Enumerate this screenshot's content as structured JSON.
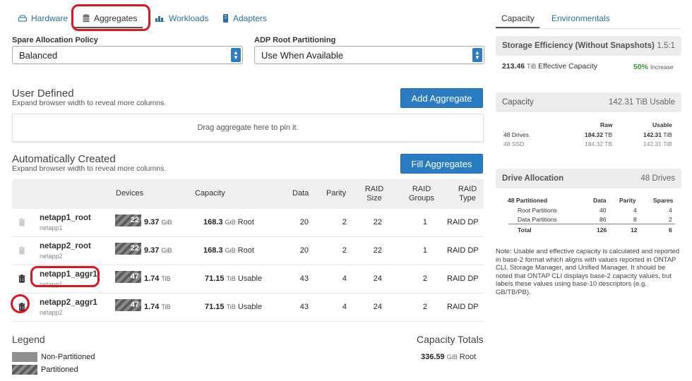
{
  "tabs": [
    {
      "label": "Hardware",
      "icon": "hard-drive-icon"
    },
    {
      "label": "Aggregates",
      "icon": "database-icon"
    },
    {
      "label": "Workloads",
      "icon": "bar-chart-icon"
    },
    {
      "label": "Adapters",
      "icon": "adapter-icon"
    }
  ],
  "spare_policy": {
    "label": "Spare Allocation Policy",
    "value": "Balanced"
  },
  "adp_root": {
    "label": "ADP Root Partitioning",
    "value": "Use When Available"
  },
  "user_defined": {
    "title": "User Defined",
    "note": "Expand browser width to reveal more columns.",
    "button": "Add Aggregate",
    "dropzone": "Drag aggregate here to pin it."
  },
  "auto_created": {
    "title": "Automatically Created",
    "note": "Expand browser width to reveal more columns.",
    "button": "Fill Aggregates"
  },
  "table": {
    "headers": {
      "devices": "Devices",
      "capacity": "Capacity",
      "data": "Data",
      "parity": "Parity",
      "raid_size_1": "RAID",
      "raid_size_2": "Size",
      "raid_groups_1": "RAID",
      "raid_groups_2": "Groups",
      "raid_type_1": "RAID",
      "raid_type_2": "Type"
    },
    "rows": [
      {
        "name": "netapp1_root",
        "node": "netapp1",
        "devices": "22",
        "dev_size": "9.37",
        "dev_unit": "GiB",
        "cap": "168.3",
        "cap_unit": "GiB",
        "cap_kind": "Root",
        "data": "20",
        "parity": "2",
        "raid_size": "22",
        "raid_groups": "1",
        "raid_type": "RAID DP"
      },
      {
        "name": "netapp2_root",
        "node": "netapp2",
        "devices": "22",
        "dev_size": "9.37",
        "dev_unit": "GiB",
        "cap": "168.3",
        "cap_unit": "GiB",
        "cap_kind": "Root",
        "data": "20",
        "parity": "2",
        "raid_size": "22",
        "raid_groups": "1",
        "raid_type": "RAID DP"
      },
      {
        "name": "netapp1_aggr1",
        "node": "netapp1",
        "devices": "47",
        "dev_size": "1.74",
        "dev_unit": "TiB",
        "cap": "71.15",
        "cap_unit": "TiB",
        "cap_kind": "Usable",
        "data": "43",
        "parity": "4",
        "raid_size": "24",
        "raid_groups": "2",
        "raid_type": "RAID DP"
      },
      {
        "name": "netapp2_aggr1",
        "node": "netapp2",
        "devices": "47",
        "dev_size": "1.74",
        "dev_unit": "TiB",
        "cap": "71.15",
        "cap_unit": "TiB",
        "cap_kind": "Usable",
        "data": "43",
        "parity": "4",
        "raid_size": "24",
        "raid_groups": "2",
        "raid_type": "RAID DP"
      }
    ]
  },
  "legend": {
    "title": "Legend",
    "non_partitioned": "Non-Partitioned",
    "partitioned": "Partitioned"
  },
  "capacity_totals": {
    "title": "Capacity Totals",
    "value": "336.59",
    "unit": "GiB",
    "kind": "Root"
  },
  "right_tabs": {
    "capacity": "Capacity",
    "environmentals": "Environmentals"
  },
  "storage_efficiency": {
    "title": "Storage Efficiency (Without Snapshots)",
    "ratio": "1.5:1",
    "effective": "213.46",
    "effective_unit": "TiB",
    "effective_label": "Effective Capacity",
    "increase_pct": "50%",
    "increase_label": "Increase",
    "increase_color": "#2a9a2a"
  },
  "capacity_card": {
    "title": "Capacity",
    "usable": "142.31 TiB Usable",
    "col_raw": "Raw",
    "col_usable": "Usable",
    "rows": [
      {
        "label": "48 Drives",
        "raw": "184.32",
        "raw_unit": "TB",
        "usable": "142.31",
        "usable_unit": "TiB"
      },
      {
        "label": "48 SSD",
        "raw": "184.32",
        "raw_unit": "TB",
        "usable": "142.31",
        "usable_unit": "TiB"
      }
    ]
  },
  "drive_allocation": {
    "title": "Drive Allocation",
    "count": "48 Drives",
    "head": "48 Partitioned",
    "col_data": "Data",
    "col_parity": "Parity",
    "col_spares": "Spares",
    "rows": [
      {
        "label": "Root Partitions",
        "data": "40",
        "parity": "4",
        "spares": "4"
      },
      {
        "label": "Data Partitions",
        "data": "86",
        "parity": "8",
        "spares": "2"
      },
      {
        "label": "Total",
        "data": "126",
        "parity": "12",
        "spares": "6"
      }
    ]
  },
  "note": "Note: Usable and effective capacity is calculated and reported in base-2 format which aligns with values reported in ONTAP CLI, Storage Manager, and Unified Manager. It should be noted that ONTAP CLI displays base-2 capacity values, but labels these values using base-10 descriptors (e.g. GB/TB/PB).",
  "colors": {
    "accent": "#2a7cc2",
    "highlight": "#e0141e",
    "link": "#2b6ea5"
  }
}
